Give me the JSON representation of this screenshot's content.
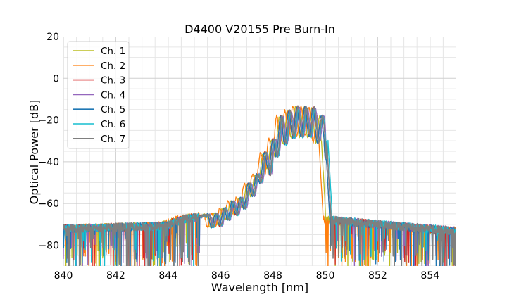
{
  "chart_data": {
    "type": "line",
    "title": "D4400 V20155 Pre Burn-In",
    "xlabel": "Wavelength [nm]",
    "ylabel": "Optical Power [dB]",
    "xlim": [
      840,
      855
    ],
    "ylim": [
      -90,
      20
    ],
    "xticks": [
      840,
      842,
      844,
      846,
      848,
      850,
      852,
      854
    ],
    "yticks": [
      20,
      0,
      -20,
      -40,
      -60,
      -80
    ],
    "xtick_labels": [
      "840",
      "842",
      "844",
      "846",
      "848",
      "850",
      "852",
      "854"
    ],
    "ytick_labels": [
      "20",
      "0",
      "−20",
      "−40",
      "−60",
      "−80"
    ],
    "grid": true,
    "legend_position": "top-left",
    "series": [
      {
        "name": "Ch. 1",
        "color": "#bcbd22",
        "shift": 0.0,
        "peak": -13.0,
        "x_right_drop": 849.8,
        "spike_density": 0.55
      },
      {
        "name": "Ch. 2",
        "color": "#ff7f0e",
        "shift": -0.1,
        "peak": -12.5,
        "x_right_drop": 849.7,
        "spike_density": 0.6
      },
      {
        "name": "Ch. 3",
        "color": "#d62728",
        "shift": 0.05,
        "peak": -12.5,
        "x_right_drop": 849.95,
        "spike_density": 0.35
      },
      {
        "name": "Ch. 4",
        "color": "#9467bd",
        "shift": 0.15,
        "peak": -13.0,
        "x_right_drop": 850.0,
        "spike_density": 0.3
      },
      {
        "name": "Ch. 5",
        "color": "#1f77b4",
        "shift": 0.05,
        "peak": -13.0,
        "x_right_drop": 849.95,
        "spike_density": 0.35
      },
      {
        "name": "Ch. 6",
        "color": "#17becf",
        "shift": 0.12,
        "peak": -13.5,
        "x_right_drop": 850.05,
        "spike_density": 0.4
      },
      {
        "name": "Ch. 7",
        "color": "#7f7f7f",
        "shift": 0.1,
        "peak": -12.5,
        "x_right_drop": 850.0,
        "spike_density": 0.45
      }
    ]
  }
}
